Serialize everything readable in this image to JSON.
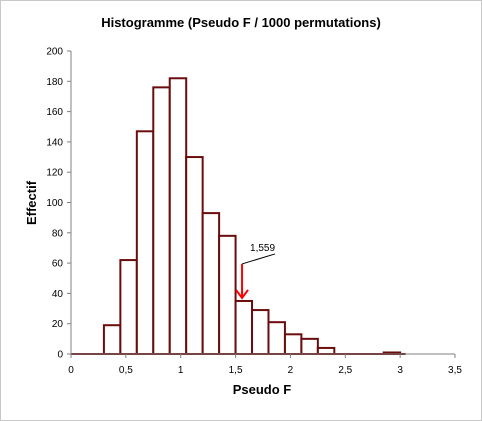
{
  "chart_data": {
    "type": "bar",
    "title": "Histogramme (Pseudo F / 1000 permutations)",
    "xlabel": "Pseudo F",
    "ylabel": "Effectif",
    "xlim": [
      0,
      3.5
    ],
    "ylim": [
      0,
      200
    ],
    "x_ticks": [
      0,
      0.5,
      1,
      1.5,
      2,
      2.5,
      3,
      3.5
    ],
    "x_tick_labels": [
      "0",
      "0,5",
      "1",
      "1,5",
      "2",
      "2,5",
      "3",
      "3,5"
    ],
    "y_ticks": [
      0,
      20,
      40,
      60,
      80,
      100,
      120,
      140,
      160,
      180,
      200
    ],
    "y_tick_labels": [
      "0",
      "20",
      "40",
      "60",
      "80",
      "100",
      "120",
      "140",
      "160",
      "180",
      "200"
    ],
    "bins": [
      {
        "start": 0.0,
        "end": 0.3,
        "count": 0
      },
      {
        "start": 0.3,
        "end": 0.45,
        "count": 19
      },
      {
        "start": 0.45,
        "end": 0.6,
        "count": 62
      },
      {
        "start": 0.6,
        "end": 0.75,
        "count": 147
      },
      {
        "start": 0.75,
        "end": 0.9,
        "count": 176
      },
      {
        "start": 0.9,
        "end": 1.05,
        "count": 182
      },
      {
        "start": 1.05,
        "end": 1.2,
        "count": 130
      },
      {
        "start": 1.2,
        "end": 1.35,
        "count": 93
      },
      {
        "start": 1.35,
        "end": 1.5,
        "count": 78
      },
      {
        "start": 1.5,
        "end": 1.65,
        "count": 35
      },
      {
        "start": 1.65,
        "end": 1.8,
        "count": 29
      },
      {
        "start": 1.8,
        "end": 1.95,
        "count": 21
      },
      {
        "start": 1.95,
        "end": 2.1,
        "count": 13
      },
      {
        "start": 2.1,
        "end": 2.25,
        "count": 10
      },
      {
        "start": 2.25,
        "end": 2.4,
        "count": 4
      },
      {
        "start": 2.4,
        "end": 2.85,
        "count": 0
      },
      {
        "start": 2.85,
        "end": 3.0,
        "count": 1
      },
      {
        "start": 3.0,
        "end": 3.05,
        "count": 0
      }
    ],
    "annotation": {
      "label": "1,559",
      "x": 1.559,
      "y": 37
    },
    "bar_color": "#6b0d0d",
    "arrow_color": "#ff0000",
    "grid": false,
    "legend": "none"
  }
}
